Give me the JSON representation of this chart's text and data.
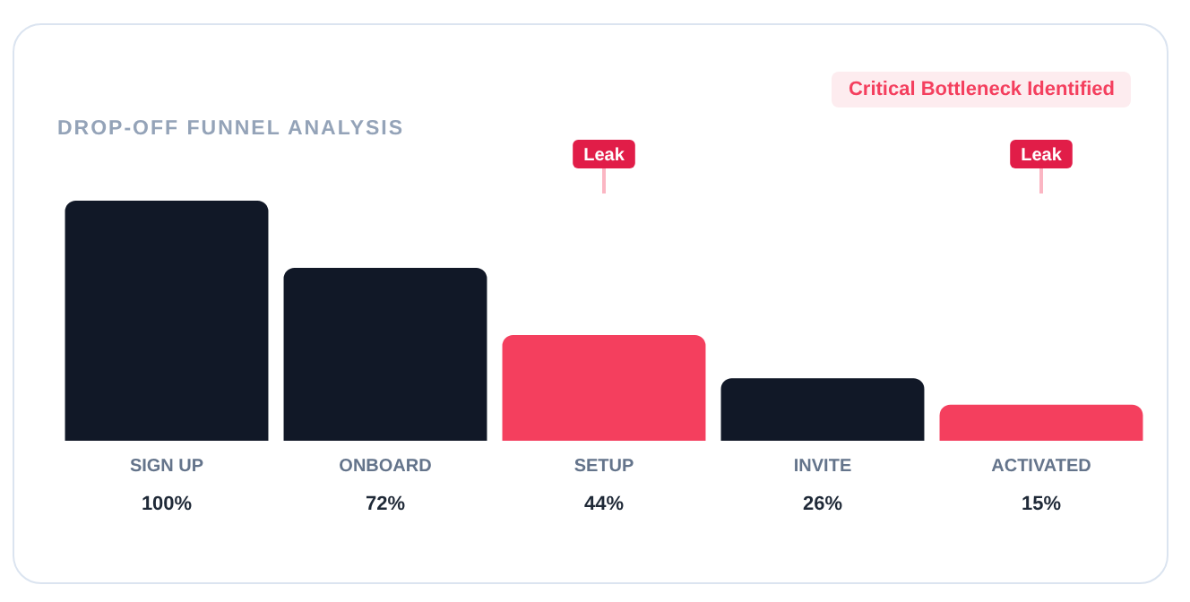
{
  "chart_data": {
    "type": "bar",
    "title": "DROP-OFF FUNNEL ANALYSIS",
    "categories": [
      "SIGN UP",
      "ONBOARD",
      "SETUP",
      "INVITE",
      "ACTIVATED"
    ],
    "values": [
      100,
      72,
      44,
      26,
      15
    ],
    "colors": [
      "#111827",
      "#111827",
      "#f43f5e",
      "#111827",
      "#f43f5e"
    ],
    "value_labels": [
      "100%",
      "72%",
      "44%",
      "26%",
      "15%"
    ],
    "annotations": [
      "Critical Bottleneck Identified",
      {
        "text": "Leak",
        "x": "SETUP"
      },
      {
        "text": "Leak",
        "x": "ACTIVATED"
      }
    ],
    "grid": false,
    "legend": false
  }
}
